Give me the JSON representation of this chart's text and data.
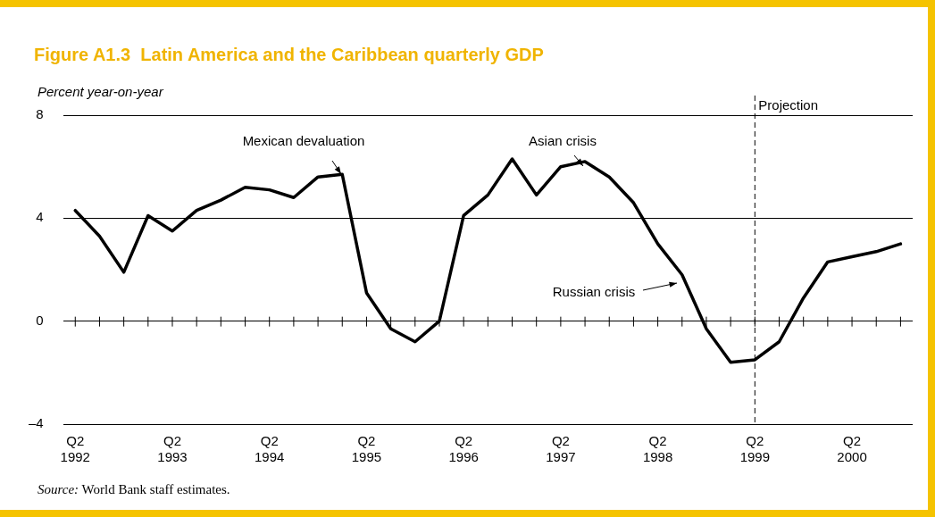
{
  "chart_data": {
    "type": "line",
    "title": "Figure A1.3  Latin America and the Caribbean quarterly GDP",
    "ylabel": "Percent year-on-year",
    "categories": [
      "Q2 1992",
      null,
      null,
      null,
      "Q2 1993",
      null,
      null,
      null,
      "Q2 1994",
      null,
      null,
      null,
      "Q2 1995",
      null,
      null,
      null,
      "Q2 1996",
      null,
      null,
      null,
      "Q2 1997",
      null,
      null,
      null,
      "Q2 1998",
      null,
      null,
      null,
      "Q2 1999",
      null,
      null,
      null,
      "Q2 2000",
      null,
      null
    ],
    "series": [
      {
        "color": "#000000",
        "values": [
          4.3,
          3.3,
          1.9,
          4.1,
          3.5,
          4.3,
          4.7,
          5.2,
          5.1,
          4.8,
          5.6,
          5.7,
          1.1,
          -0.3,
          -0.8,
          0,
          4.1,
          4.9,
          6.3,
          4.9,
          6.0,
          6.2,
          5.6,
          4.6,
          3.0,
          1.8,
          -0.3,
          -1.6,
          -1.5,
          -0.8,
          0.9,
          2.3,
          2.5,
          2.7,
          3.0
        ]
      }
    ],
    "ylim": [
      -4,
      8
    ],
    "yticks": [
      {
        "value": -4,
        "label": "–4"
      },
      0,
      4,
      8
    ],
    "grid": "y",
    "legend": false,
    "marker": "none",
    "line_style": "solid",
    "ref_lines": [
      {
        "axis": "x",
        "value": "Q2 1999",
        "label": "Projection",
        "line_style": "dashed",
        "color": "#000000"
      }
    ],
    "annotations": [
      "Mexican devaluation",
      "Asian crisis",
      "Russian crisis",
      "Source: World Bank staff estimates."
    ]
  }
}
